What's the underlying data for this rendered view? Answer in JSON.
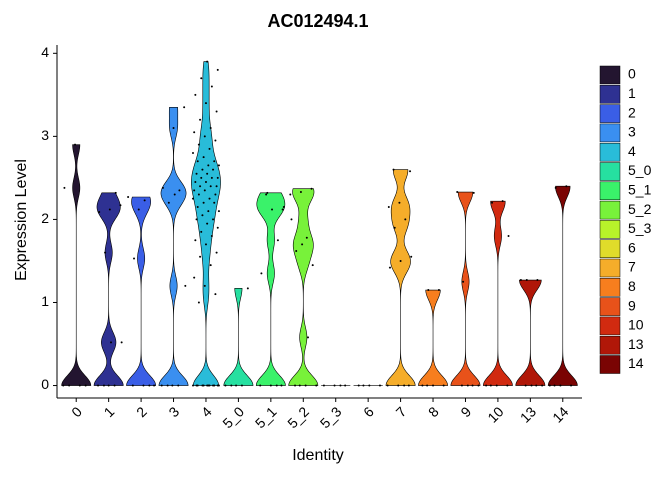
{
  "chart_data": {
    "type": "violin",
    "title": "AC012494.1",
    "xlabel": "Identity",
    "ylabel": "Expression Level",
    "categories": [
      "0",
      "1",
      "2",
      "3",
      "4",
      "5_0",
      "5_1",
      "5_2",
      "5_3",
      "6",
      "7",
      "8",
      "9",
      "10",
      "13",
      "14"
    ],
    "colors": [
      "#231530",
      "#2e3192",
      "#3a5ee6",
      "#3a8ff0",
      "#29bcd9",
      "#26e0a0",
      "#3af26a",
      "#78f23a",
      "#b8f22a",
      "#e0dc2a",
      "#f5ad2a",
      "#f77e1e",
      "#e8521a",
      "#d12a10",
      "#b01708",
      "#7a0403"
    ],
    "points": [
      [
        0,
        0,
        0,
        0,
        2.9,
        2.38
      ],
      [
        0,
        0,
        0,
        0,
        2.17,
        2.12,
        2.09,
        2.32,
        1.6,
        0.52,
        0.52
      ],
      [
        0,
        0,
        0,
        0,
        2.12,
        2.27,
        2.23,
        1.53
      ],
      [
        0,
        0,
        0,
        0,
        3.35,
        3.1,
        2.38,
        2.35,
        2.2,
        1.2,
        2.3
      ],
      [
        0,
        0,
        0,
        0,
        0,
        0,
        0,
        0,
        0,
        0,
        0,
        0,
        1.0,
        1.1,
        1.2,
        1.3,
        1.45,
        1.55,
        1.6,
        1.7,
        1.75,
        1.8,
        1.85,
        1.9,
        1.95,
        2.0,
        2.0,
        2.05,
        2.1,
        2.1,
        2.15,
        2.2,
        2.2,
        2.25,
        2.25,
        2.3,
        2.3,
        2.35,
        2.35,
        2.4,
        2.4,
        2.4,
        2.45,
        2.45,
        2.5,
        2.5,
        2.5,
        2.55,
        2.55,
        2.6,
        2.6,
        2.65,
        2.65,
        2.7,
        2.7,
        2.75,
        2.8,
        2.85,
        2.9,
        2.95,
        3.0,
        3.05,
        3.1,
        3.2,
        3.3,
        3.4,
        3.5,
        3.6,
        3.7,
        3.8,
        3.9
      ],
      [
        0,
        0,
        0,
        0,
        1.17
      ],
      [
        0,
        0,
        0,
        0,
        2.3,
        2.12,
        2.12,
        1.35,
        1.75,
        2.32,
        2.15
      ],
      [
        0,
        0,
        0,
        0,
        2.37,
        2.33,
        2.3,
        1.78,
        1.62,
        1.45,
        1.7,
        2.0,
        0.58
      ],
      [
        0,
        0,
        0,
        0
      ],
      [
        0,
        0,
        0,
        0
      ],
      [
        0,
        0,
        0,
        0,
        2.6,
        2.58,
        2.2,
        2.15,
        2.0,
        1.9,
        1.55,
        1.5,
        1.42
      ],
      [
        0,
        0,
        0,
        0,
        1.15,
        1.15
      ],
      [
        0,
        0,
        0,
        0,
        2.33,
        2.32,
        1.25
      ],
      [
        0,
        0,
        0,
        0,
        2.22,
        2.2,
        1.8
      ],
      [
        0,
        0,
        0,
        0,
        1.27,
        1.27,
        1.27
      ],
      [
        0,
        0,
        0,
        0,
        2.4,
        2.38
      ]
    ],
    "ylim": [
      -0.15,
      4.1
    ],
    "yticks": [
      0,
      1,
      2,
      3,
      4
    ]
  }
}
